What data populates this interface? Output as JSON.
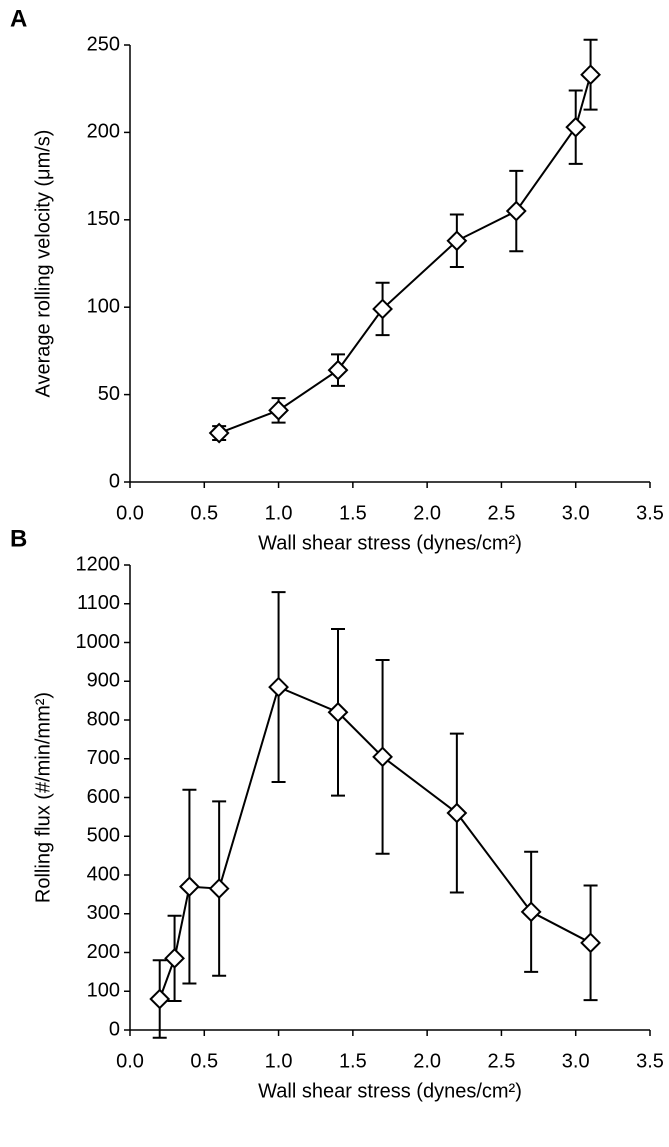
{
  "chart_data": [
    {
      "type": "line",
      "panel_label": "A",
      "x_label": "Wall shear stress (dynes/cm²)",
      "y_label": "Average rolling velocity (μm/s)",
      "x": [
        0.6,
        1.0,
        1.4,
        1.7,
        2.2,
        2.6,
        3.0,
        3.1
      ],
      "values": [
        28,
        41,
        64,
        99,
        138,
        155,
        203,
        233
      ],
      "errors": [
        4,
        7,
        9,
        15,
        15,
        23,
        21,
        20
      ],
      "color": "#000000",
      "xlim": [
        0,
        3.5
      ],
      "xticks": [
        {
          "value": 0,
          "label": "0.0"
        },
        {
          "value": 0.5,
          "label": "0.5"
        },
        {
          "value": 1,
          "label": "1.0"
        },
        {
          "value": 1.5,
          "label": "1.5"
        },
        {
          "value": 2,
          "label": "2.0"
        },
        {
          "value": 2.5,
          "label": "2.5"
        },
        {
          "value": 3,
          "label": "3.0"
        },
        {
          "value": 3.5,
          "label": "3.5"
        }
      ],
      "ylim": [
        0,
        250
      ],
      "yticks": [
        0,
        50,
        100,
        150,
        200,
        250
      ]
    },
    {
      "type": "line",
      "panel_label": "B",
      "x_label": "Wall shear stress (dynes/cm²)",
      "y_label": "Rolling flux (#/min/mm²)",
      "x": [
        0.2,
        0.3,
        0.4,
        0.6,
        1.0,
        1.4,
        1.7,
        2.2,
        2.7,
        3.1
      ],
      "values": [
        80,
        185,
        370,
        365,
        885,
        820,
        705,
        560,
        305,
        225
      ],
      "errors": [
        100,
        110,
        250,
        225,
        245,
        215,
        250,
        205,
        155,
        148
      ],
      "color": "#000000",
      "xlim": [
        0,
        3.5
      ],
      "xticks": [
        {
          "value": 0,
          "label": "0.0"
        },
        {
          "value": 0.5,
          "label": "0.5"
        },
        {
          "value": 1,
          "label": "1.0"
        },
        {
          "value": 1.5,
          "label": "1.5"
        },
        {
          "value": 2,
          "label": "2.0"
        },
        {
          "value": 2.5,
          "label": "2.5"
        },
        {
          "value": 3,
          "label": "3.0"
        },
        {
          "value": 3.5,
          "label": "3.5"
        }
      ],
      "ylim": [
        0,
        1200
      ],
      "yticks": [
        0,
        100,
        200,
        300,
        400,
        500,
        600,
        700,
        800,
        900,
        1000,
        1100,
        1200
      ]
    }
  ]
}
